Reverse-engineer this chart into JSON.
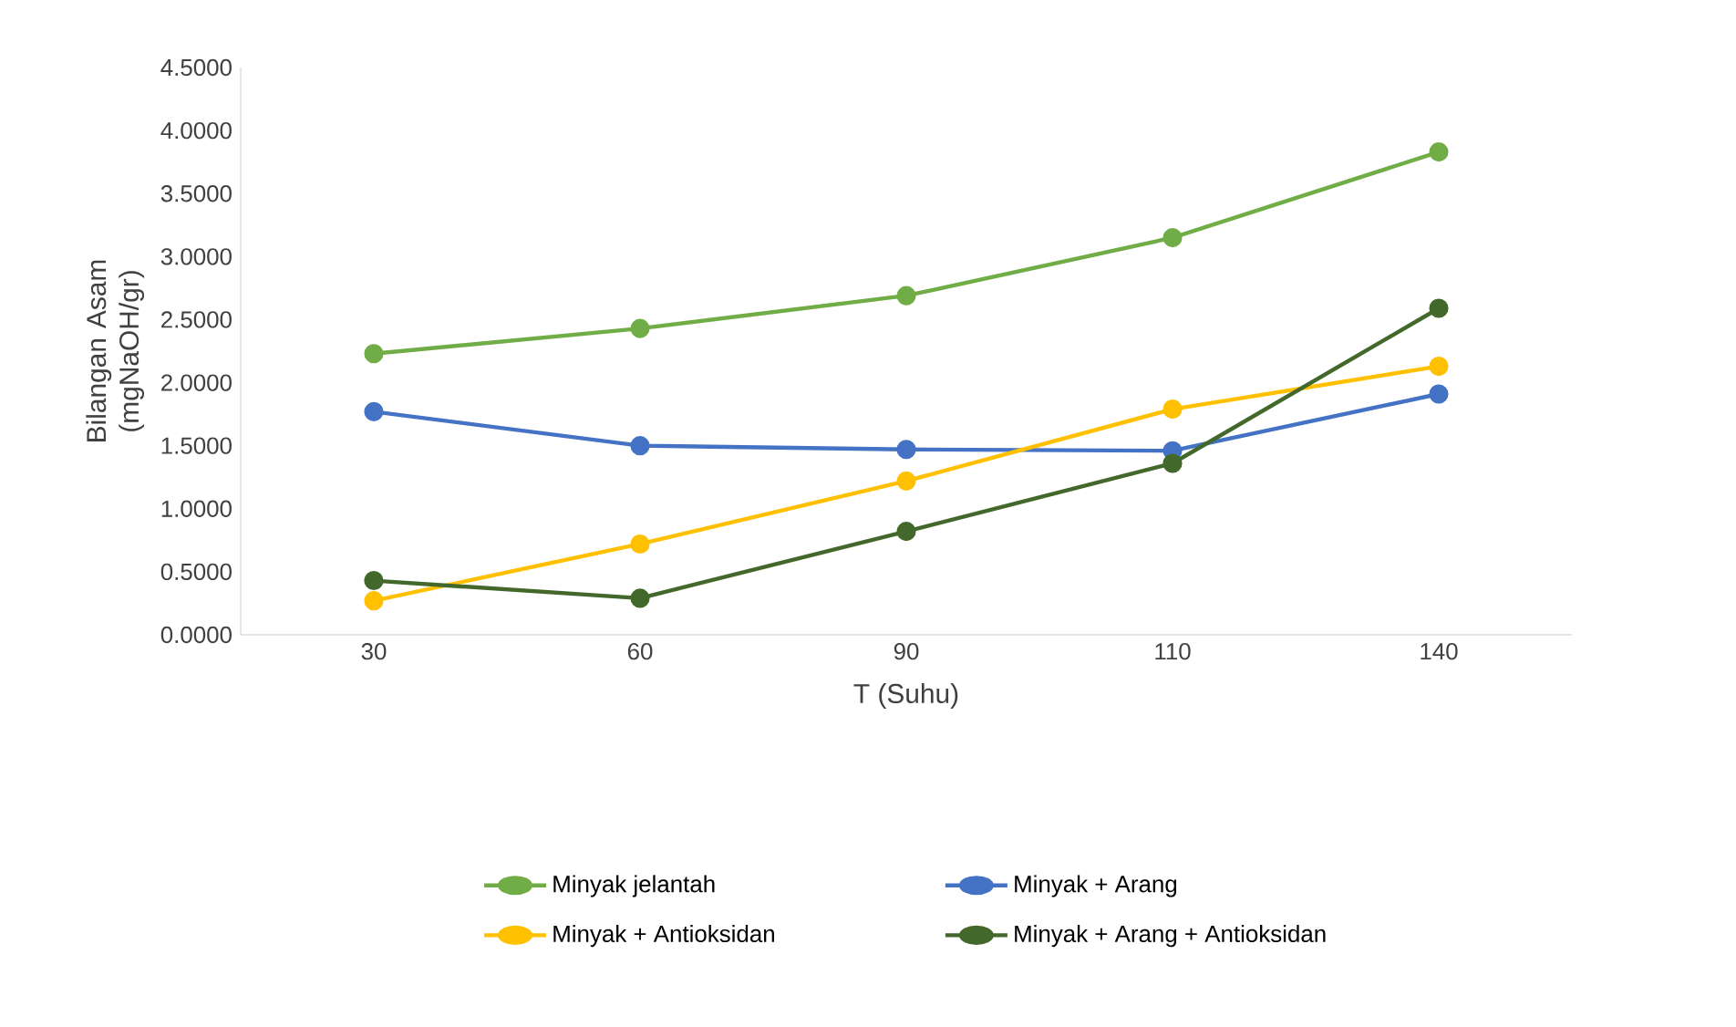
{
  "chart_data": {
    "type": "line",
    "xlabel": "T (Suhu)",
    "ylabel": "Bilangan Asam (mgNaOH/gr)",
    "categories": [
      "30",
      "60",
      "90",
      "110",
      "140"
    ],
    "series": [
      {
        "name": "Minyak jelantah",
        "color": "#70ad47",
        "values": [
          2.23,
          2.43,
          2.69,
          3.15,
          3.83
        ]
      },
      {
        "name": "Minyak + Arang",
        "color": "#4472c4",
        "values": [
          1.77,
          1.5,
          1.47,
          1.46,
          1.91
        ]
      },
      {
        "name": "Minyak + Antioksidan",
        "color": "#ffc000",
        "values": [
          0.27,
          0.72,
          1.22,
          1.79,
          2.13
        ]
      },
      {
        "name": "Minyak + Arang + Antioksidan",
        "color": "#43682b",
        "values": [
          0.43,
          0.29,
          0.82,
          1.36,
          2.59
        ]
      }
    ],
    "ylim": [
      0,
      4.5
    ],
    "yticks": [
      {
        "value": 0,
        "label": "0.0000"
      },
      {
        "value": 0.5,
        "label": "0.5000"
      },
      {
        "value": 1,
        "label": "1.0000"
      },
      {
        "value": 1.5,
        "label": "1.5000"
      },
      {
        "value": 2,
        "label": "2.0000"
      },
      {
        "value": 2.5,
        "label": "2.5000"
      },
      {
        "value": 3,
        "label": "3.0000"
      },
      {
        "value": 3.5,
        "label": "3.5000"
      },
      {
        "value": 4,
        "label": "4.0000"
      },
      {
        "value": 4.5,
        "label": "4.5000"
      }
    ],
    "grid": false,
    "legend": "bottom",
    "marker": "circle",
    "line_style": "solid"
  }
}
